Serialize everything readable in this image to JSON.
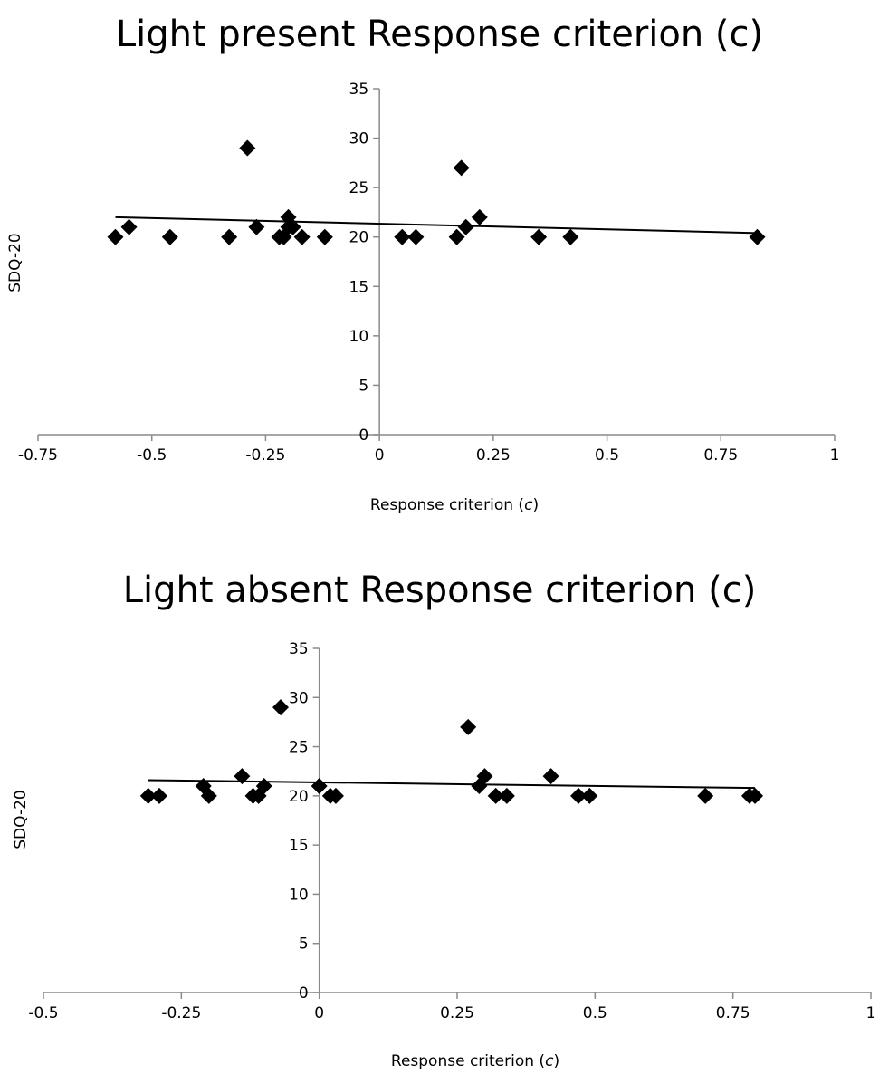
{
  "chart_data": [
    {
      "type": "scatter",
      "title": "Light present Response criterion (c)",
      "xlabel": "Response criterion (c)",
      "xlabel_prefix": "Response criterion (",
      "xlabel_italic": "c",
      "xlabel_suffix": ")",
      "ylabel": "SDQ-20",
      "xlim": [
        -0.75,
        1
      ],
      "ylim": [
        0,
        35
      ],
      "xticks": [
        -0.75,
        -0.5,
        -0.25,
        0,
        0.25,
        0.5,
        0.75,
        1
      ],
      "xtick_labels": [
        "-0.75",
        "-0.5",
        "-0.25",
        "0",
        "0.25",
        "0.5",
        "0.75",
        "1"
      ],
      "yticks": [
        0,
        5,
        10,
        15,
        20,
        25,
        30,
        35
      ],
      "ytick_labels": [
        "0",
        "5",
        "10",
        "15",
        "20",
        "25",
        "30",
        "35"
      ],
      "grid": false,
      "legend": "none",
      "marker": "diamond",
      "color": "#000000",
      "points": [
        [
          -0.58,
          20
        ],
        [
          -0.55,
          21
        ],
        [
          -0.46,
          20
        ],
        [
          -0.33,
          20
        ],
        [
          -0.29,
          29
        ],
        [
          -0.27,
          21
        ],
        [
          -0.22,
          20
        ],
        [
          -0.21,
          20
        ],
        [
          -0.2,
          22
        ],
        [
          -0.2,
          21
        ],
        [
          -0.19,
          21
        ],
        [
          -0.17,
          20
        ],
        [
          -0.12,
          20
        ],
        [
          0.05,
          20
        ],
        [
          0.08,
          20
        ],
        [
          0.17,
          20
        ],
        [
          0.18,
          27
        ],
        [
          0.19,
          21
        ],
        [
          0.22,
          22
        ],
        [
          0.35,
          20
        ],
        [
          0.42,
          20
        ],
        [
          0.83,
          20
        ]
      ],
      "trendline": {
        "x": [
          -0.58,
          0.83
        ],
        "y": [
          22,
          20.4
        ]
      }
    },
    {
      "type": "scatter",
      "title": "Light absent Response criterion (c)",
      "xlabel": "Response criterion (c)",
      "xlabel_prefix": "Response criterion (",
      "xlabel_italic": "c",
      "xlabel_suffix": ")",
      "ylabel": "SDQ-20",
      "xlim": [
        -0.5,
        1
      ],
      "ylim": [
        0,
        35
      ],
      "xticks": [
        -0.5,
        -0.25,
        0,
        0.25,
        0.5,
        0.75,
        1
      ],
      "xtick_labels": [
        "-0.5",
        "-0.25",
        "0",
        "0.25",
        "0.5",
        "0.75",
        "1"
      ],
      "yticks": [
        0,
        5,
        10,
        15,
        20,
        25,
        30,
        35
      ],
      "ytick_labels": [
        "0",
        "5",
        "10",
        "15",
        "20",
        "25",
        "30",
        "35"
      ],
      "grid": false,
      "legend": "none",
      "marker": "diamond",
      "color": "#000000",
      "points": [
        [
          -0.31,
          20
        ],
        [
          -0.29,
          20
        ],
        [
          -0.21,
          21
        ],
        [
          -0.2,
          20
        ],
        [
          -0.14,
          22
        ],
        [
          -0.12,
          20
        ],
        [
          -0.11,
          20
        ],
        [
          -0.1,
          21
        ],
        [
          -0.07,
          29
        ],
        [
          0.0,
          21
        ],
        [
          0.02,
          20
        ],
        [
          0.03,
          20
        ],
        [
          0.27,
          27
        ],
        [
          0.29,
          21
        ],
        [
          0.3,
          22
        ],
        [
          0.32,
          20
        ],
        [
          0.34,
          20
        ],
        [
          0.42,
          22
        ],
        [
          0.47,
          20
        ],
        [
          0.49,
          20
        ],
        [
          0.7,
          20
        ],
        [
          0.78,
          20
        ],
        [
          0.79,
          20
        ]
      ],
      "trendline": {
        "x": [
          -0.31,
          0.79
        ],
        "y": [
          21.6,
          20.8
        ]
      }
    }
  ]
}
